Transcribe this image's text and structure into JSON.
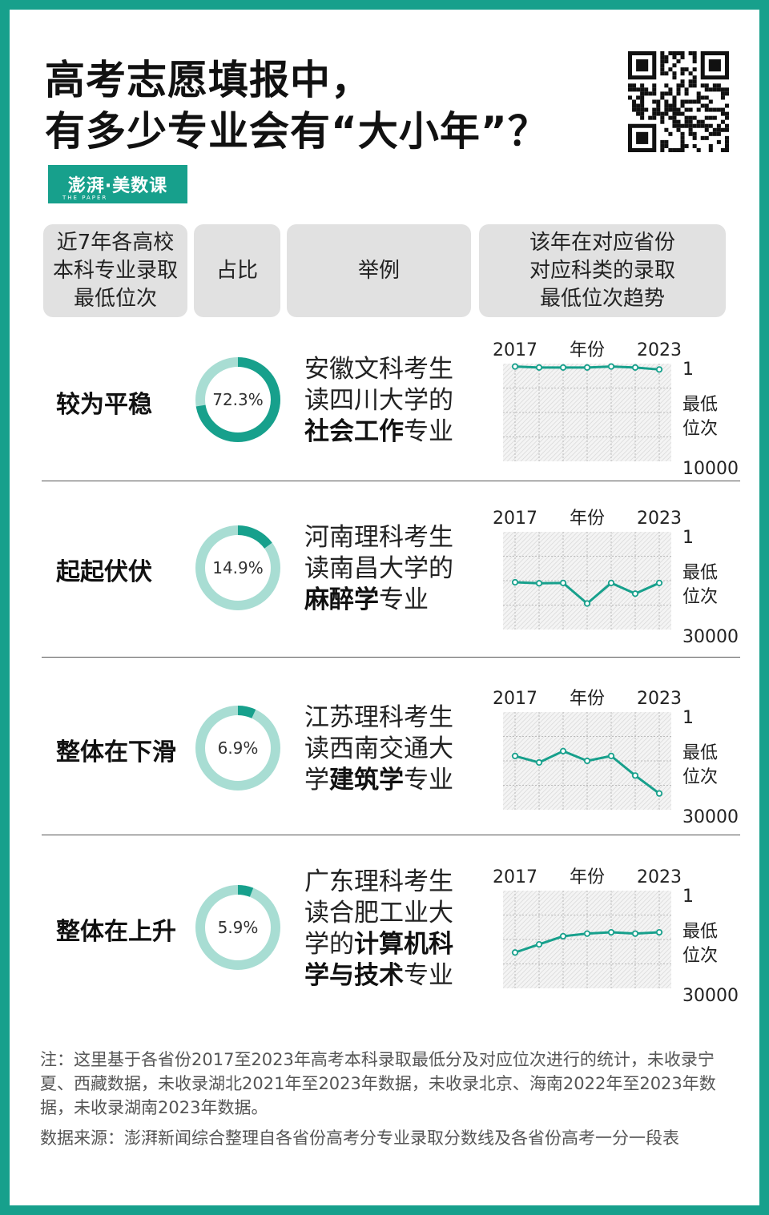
{
  "title": {
    "line1": "高考志愿填报中，",
    "line2": "有多少专业会有“大小年”？"
  },
  "brand": {
    "name": "澎湃·美数课",
    "sub": "THE PAPER"
  },
  "headers": {
    "col1": "近7年各高校\n本科专业录取\n最低位次",
    "col2": "占比",
    "col3": "举例",
    "col4": "该年在对应省份\n对应科类的录取\n最低位次趋势"
  },
  "colors": {
    "accent": "#17a08c",
    "ring_light": "#a8ddd3",
    "header_bg": "#e1e1e1"
  },
  "chart_data": [
    {
      "type": "line",
      "category": "较为平稳",
      "share_percent": 72.3,
      "share_label": "72.3%",
      "example": {
        "pre1": "安徽文科考生",
        "pre2": "读四川大学的",
        "bold": "社会工作",
        "post": "专业"
      },
      "x_start_label": "2017",
      "x_mid_label": "年份",
      "x_end_label": "2023",
      "x": [
        2017,
        2018,
        2019,
        2020,
        2021,
        2022,
        2023
      ],
      "y": [
        300,
        400,
        400,
        400,
        300,
        400,
        600
      ],
      "ylim": [
        1,
        10000
      ],
      "y_top_label": "1",
      "y_bottom_label": "10000",
      "ylabel": "最低位次",
      "y_inverted": true,
      "grid": true
    },
    {
      "type": "line",
      "category": "起起伏伏",
      "share_percent": 14.9,
      "share_label": "14.9%",
      "example": {
        "pre1": "河南理科考生",
        "pre2": "读南昌大学的",
        "bold": "麻醉学",
        "post": "专业"
      },
      "x_start_label": "2017",
      "x_mid_label": "年份",
      "x_end_label": "2023",
      "x": [
        2017,
        2018,
        2019,
        2020,
        2021,
        2022,
        2023
      ],
      "y": [
        15500,
        15800,
        15700,
        22000,
        15700,
        19000,
        15700
      ],
      "ylim": [
        1,
        30000
      ],
      "y_top_label": "1",
      "y_bottom_label": "30000",
      "ylabel": "最低位次",
      "y_inverted": true,
      "grid": true
    },
    {
      "type": "line",
      "category": "整体在下滑",
      "share_percent": 6.9,
      "share_label": "6.9%",
      "example": {
        "pre1": "江苏理科考生",
        "pre2": "读西南交通大",
        "pre3": "学",
        "bold": "建筑学",
        "post": "专业"
      },
      "x_start_label": "2017",
      "x_mid_label": "年份",
      "x_end_label": "2023",
      "x": [
        2017,
        2018,
        2019,
        2020,
        2021,
        2022,
        2023
      ],
      "y": [
        13500,
        15500,
        12000,
        15000,
        13500,
        19500,
        25000
      ],
      "ylim": [
        1,
        30000
      ],
      "y_top_label": "1",
      "y_bottom_label": "30000",
      "ylabel": "最低位次",
      "y_inverted": true,
      "grid": true
    },
    {
      "type": "line",
      "category": "整体在上升",
      "share_percent": 5.9,
      "share_label": "5.9%",
      "example": {
        "pre1": "广东理科考生",
        "pre2": "读合肥工业大",
        "pre3": "学的",
        "bold": "计算机科",
        "bold2": "学与技术",
        "post": "专业"
      },
      "x_start_label": "2017",
      "x_mid_label": "年份",
      "x_end_label": "2023",
      "x": [
        2017,
        2018,
        2019,
        2020,
        2021,
        2022,
        2023
      ],
      "y": [
        19000,
        16500,
        14000,
        13200,
        12800,
        13200,
        12800
      ],
      "ylim": [
        1,
        30000
      ],
      "y_top_label": "1",
      "y_bottom_label": "30000",
      "ylabel": "最低位次",
      "y_inverted": true,
      "grid": true
    }
  ],
  "note": "注：这里基于各省份2017至2023年高考本科录取最低分及对应位次进行的统计，未收录宁夏、西藏数据，未收录湖北2021年至2023年数据，未收录北京、海南2022年至2023年数据，未收录湖南2023年数据。",
  "source": "数据来源：澎湃新闻综合整理自各省份高考分专业录取分数线及各省份高考一分一段表"
}
